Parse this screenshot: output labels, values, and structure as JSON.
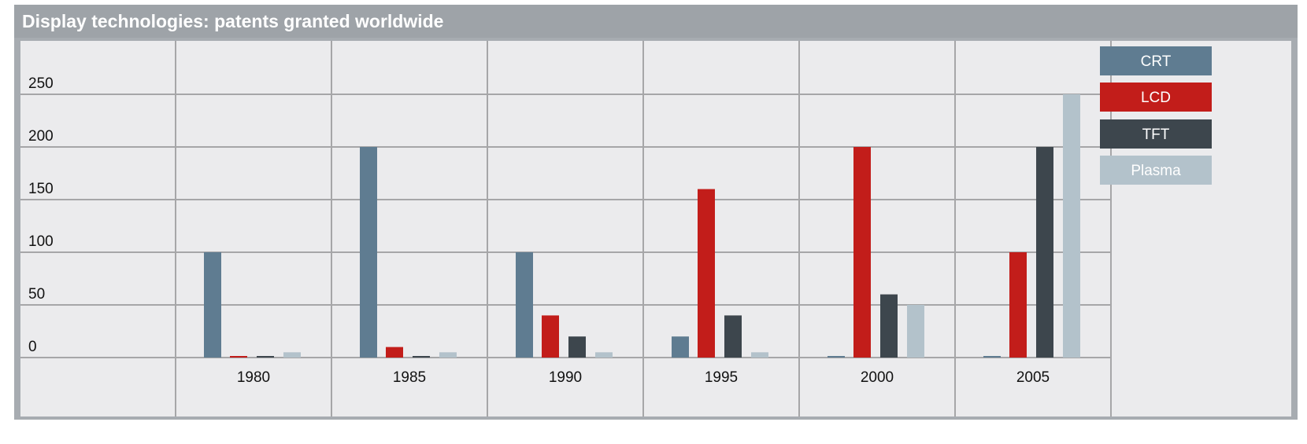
{
  "title": "Display technologies: patents granted worldwide",
  "colors": {
    "CRT": "#5f7c91",
    "LCD": "#c21d1a",
    "TFT": "#3d464d",
    "Plasma": "#b3c2cb"
  },
  "chart_data": {
    "type": "bar",
    "title": "Display technologies: patents granted worldwide",
    "xlabel": "",
    "ylabel": "",
    "categories": [
      "1980",
      "1985",
      "1990",
      "1995",
      "2000",
      "2005"
    ],
    "series": [
      {
        "name": "CRT",
        "values": [
          100,
          200,
          100,
          20,
          0,
          0
        ]
      },
      {
        "name": "LCD",
        "values": [
          1,
          10,
          40,
          160,
          200,
          100
        ]
      },
      {
        "name": "TFT",
        "values": [
          1,
          1,
          20,
          40,
          60,
          200
        ]
      },
      {
        "name": "Plasma",
        "values": [
          5,
          5,
          5,
          5,
          50,
          250
        ]
      }
    ],
    "ylim": [
      0,
      250
    ],
    "yticks": [
      "0",
      "50",
      "100",
      "150",
      "200",
      "250"
    ],
    "grid": true,
    "legend": "top-right"
  }
}
